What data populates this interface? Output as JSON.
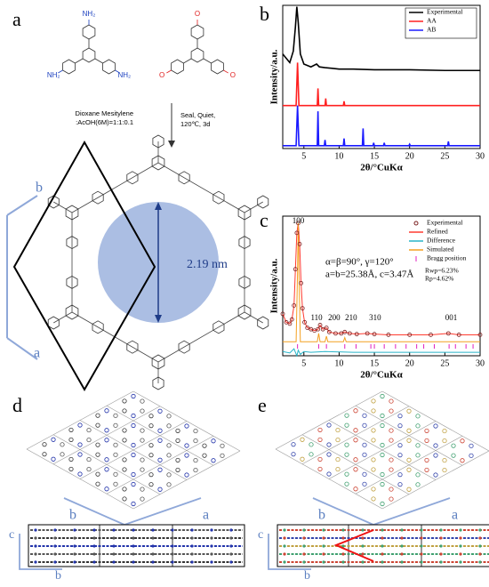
{
  "panel_labels": [
    "a",
    "b",
    "c",
    "d",
    "e"
  ],
  "scheme": {
    "amine_label": "NH₂",
    "aldehyde_label": "O",
    "condition_left_1": "Dioxane Mesitylene",
    "condition_left_2": ":AcOH(6M)=1:1:0.1",
    "condition_right_1": "Seal, Quiet,",
    "condition_right_2": "120℃, 3d",
    "pore_size": "2.19 nm",
    "axis_a": "a",
    "axis_b": "b"
  },
  "structure_d": {
    "axis_a": "a",
    "axis_b": "b",
    "axis_c": "c",
    "axis_b_side": "b"
  },
  "structure_e": {
    "axis_a": "a",
    "axis_b": "b",
    "axis_c": "c",
    "axis_b_side": "b"
  },
  "chart_data": [
    {
      "type": "line",
      "ylabel": "Intensity/a.u.",
      "xlabel": "2θ/°CuKα",
      "xlim": [
        2,
        30
      ],
      "xticks": [
        5,
        10,
        15,
        20,
        25,
        30
      ],
      "ylim": [
        0,
        100
      ],
      "legend": "upper right",
      "series": [
        {
          "name": "Experimental",
          "color": "#000000",
          "x": [
            2,
            3,
            3.5,
            3.8,
            4.0,
            4.2,
            4.5,
            5,
            6,
            6.8,
            7.2,
            8,
            9,
            10,
            12,
            15,
            20,
            25,
            30
          ],
          "values": [
            66,
            60,
            68,
            85,
            99,
            88,
            66,
            59,
            57,
            59,
            57,
            56.5,
            56,
            55.5,
            55.5,
            55,
            55,
            54.5,
            54.5
          ]
        },
        {
          "name": "AA",
          "color": "#ff2020",
          "x": [
            2,
            3.9,
            4.1,
            4.3,
            6.9,
            7.0,
            7.1,
            8.0,
            8.1,
            8.2,
            10.6,
            10.7,
            10.8,
            30
          ],
          "values": [
            30,
            30,
            60,
            30,
            30,
            42,
            30,
            30,
            35,
            30,
            30,
            33,
            30,
            30
          ]
        },
        {
          "name": "AB",
          "color": "#1a1aff",
          "x": [
            2,
            3.9,
            4.1,
            4.3,
            6.9,
            7.0,
            7.1,
            7.9,
            8.0,
            8.1,
            10.6,
            10.7,
            10.8,
            13.3,
            13.4,
            13.5,
            14.8,
            14.9,
            15,
            16.3,
            16.4,
            16.5,
            19.9,
            20,
            20.1,
            25.4,
            25.5,
            25.6,
            30
          ],
          "values": [
            2,
            2,
            30,
            2,
            2,
            26,
            2,
            2,
            6,
            2,
            2,
            7,
            2,
            2,
            14,
            2,
            2,
            4,
            2,
            2,
            4,
            2,
            2,
            3,
            2,
            2,
            5,
            2,
            2
          ]
        }
      ]
    },
    {
      "type": "line",
      "ylabel": "Intensity/a.u.",
      "xlabel": "2θ/°CuKα",
      "xlim": [
        2,
        30
      ],
      "xticks": [
        5,
        10,
        15,
        20,
        25,
        30
      ],
      "ylim": [
        0,
        100
      ],
      "legend": "upper right",
      "cell_params": [
        "α=β=90°, γ=120°",
        "a=b=25.38Å, c=3.47Å"
      ],
      "fit_params": [
        "Rwp=6.23%",
        "Rp=4.62%"
      ],
      "annotations": [
        {
          "text": "100",
          "x": 4.2
        },
        {
          "text": "110",
          "x": 6.8
        },
        {
          "text": "200",
          "x": 9.3
        },
        {
          "text": "210",
          "x": 11.7
        },
        {
          "text": "310",
          "x": 15.1
        },
        {
          "text": "001",
          "x": 25.9
        }
      ],
      "series": [
        {
          "name": "Experimental",
          "color": "#7a1f1f",
          "marker": "circle",
          "x": [
            2,
            2.5,
            3,
            3.3,
            3.6,
            3.8,
            4.0,
            4.2,
            4.4,
            4.6,
            4.8,
            5.1,
            5.5,
            6,
            6.5,
            7,
            7.3,
            7.7,
            8.2,
            8.6,
            9.5,
            10.3,
            10.8,
            11.5,
            12.5,
            14,
            15,
            17,
            20,
            23,
            25.5,
            27,
            30
          ],
          "values": [
            30,
            24,
            23,
            26,
            36,
            62,
            88,
            95,
            80,
            52,
            34,
            24,
            20,
            19,
            18,
            19,
            22,
            19,
            20,
            17,
            16,
            16,
            17,
            16,
            15.5,
            16,
            15.5,
            15,
            15,
            15,
            16,
            15,
            15
          ]
        },
        {
          "name": "Refined",
          "color": "#ff3b30",
          "x": [
            2,
            2.5,
            3,
            3.3,
            3.6,
            3.8,
            4.0,
            4.2,
            4.4,
            4.6,
            4.8,
            5.1,
            5.5,
            6,
            6.5,
            7,
            7.3,
            7.7,
            8.2,
            8.6,
            9.5,
            10.3,
            10.8,
            11.5,
            12.5,
            14,
            15,
            17,
            20,
            23,
            25.5,
            27,
            30
          ],
          "values": [
            30,
            24,
            23,
            26,
            36,
            62,
            88,
            95,
            80,
            52,
            34,
            24,
            20,
            19,
            18,
            19,
            22,
            19,
            20,
            17,
            16,
            16,
            17,
            16,
            15.5,
            16,
            15.5,
            15,
            15,
            15,
            16,
            15,
            15
          ]
        },
        {
          "name": "Difference",
          "color": "#28b4c8",
          "x": [
            2,
            3,
            3.6,
            4,
            4.2,
            4.5,
            5,
            6,
            8,
            12,
            20,
            30
          ],
          "values": [
            3,
            2,
            5,
            0,
            4,
            1,
            3,
            2.5,
            3,
            2.5,
            2.5,
            2.5
          ]
        },
        {
          "name": "Simulated",
          "color": "#f4a020",
          "x": [
            2,
            3.9,
            4.1,
            4.2,
            4.3,
            4.5,
            6.9,
            7.1,
            7.3,
            8.0,
            8.2,
            8.4,
            10.6,
            10.8,
            11,
            30
          ],
          "values": [
            10,
            10,
            60,
            95,
            60,
            10,
            10,
            16,
            10,
            10,
            14,
            10,
            10,
            13,
            10,
            10
          ]
        },
        {
          "name": "Bragg position",
          "color": "#e020c0",
          "marker": "tick",
          "x": [
            4.1,
            7.1,
            8.2,
            10.8,
            12.4,
            14.5,
            15.0,
            16.4,
            18.0,
            19.5,
            21.0,
            22.0,
            23.5,
            25.6,
            26.5,
            28.0,
            29.0
          ]
        }
      ]
    }
  ]
}
